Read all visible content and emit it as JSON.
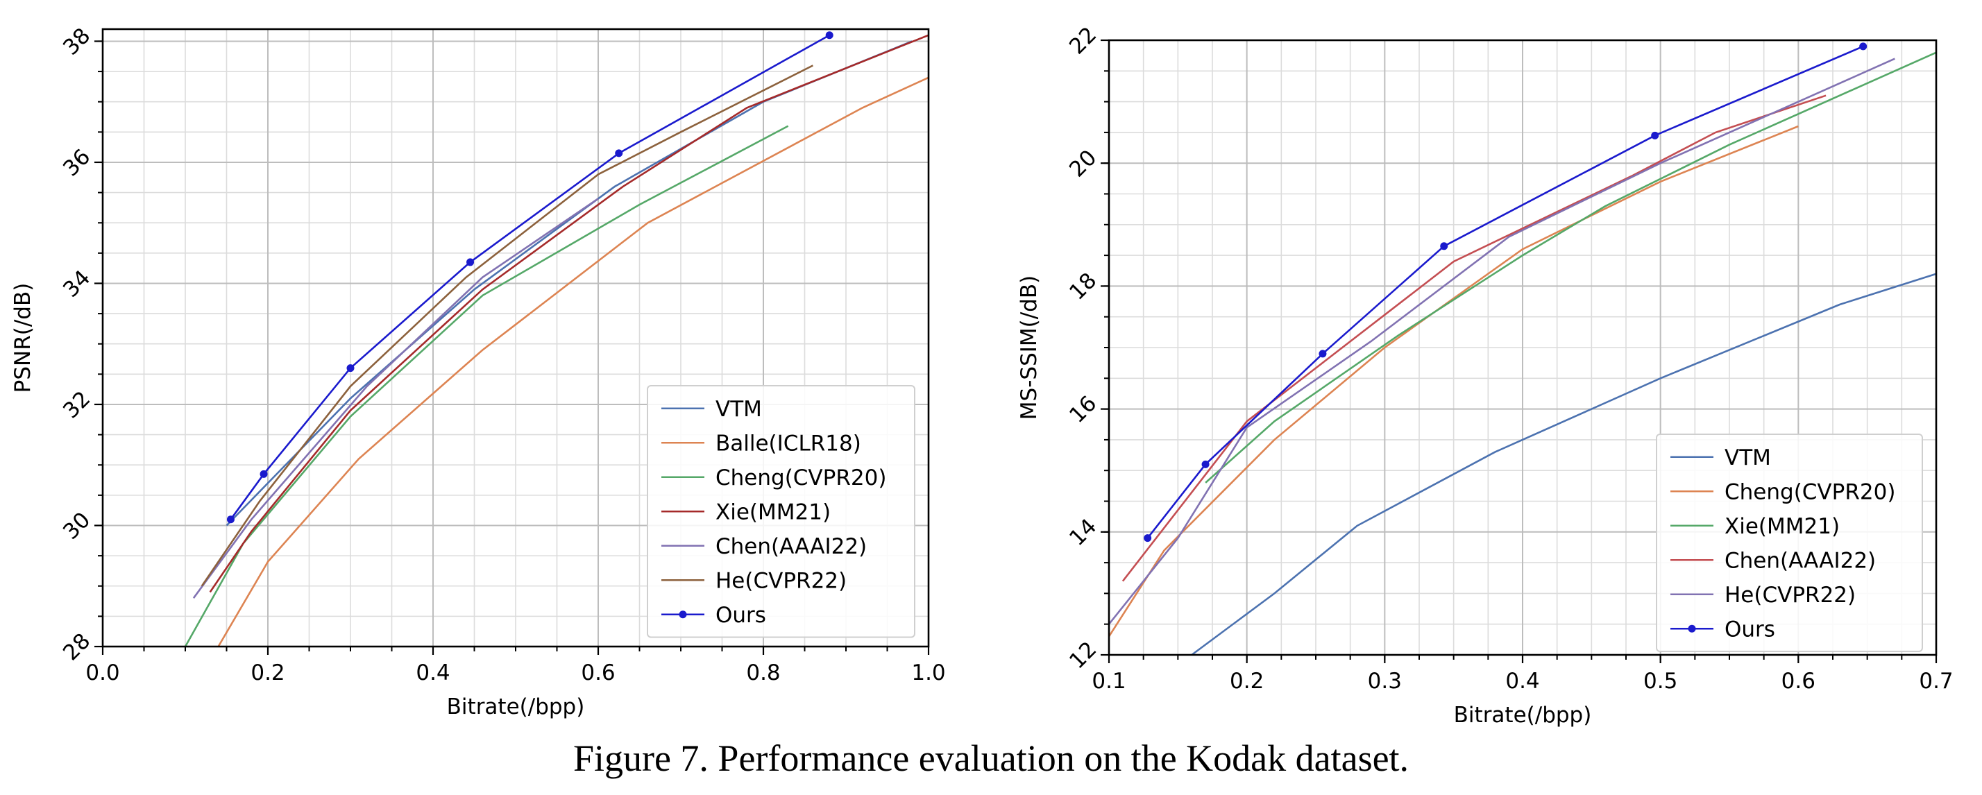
{
  "caption": "Figure 7. Performance evaluation on the Kodak dataset.",
  "chart_data": [
    {
      "type": "line",
      "xlabel": "Bitrate(/bpp)",
      "ylabel": "PSNR(/dB)",
      "xlim": [
        0.0,
        1.0
      ],
      "ylim": [
        28,
        38.2
      ],
      "xticks": [
        0.0,
        0.2,
        0.4,
        0.6,
        0.8,
        1.0
      ],
      "xtick_labels": [
        "0.0",
        "0.2",
        "0.4",
        "0.6",
        "0.8",
        "1.0"
      ],
      "yticks": [
        28,
        30,
        32,
        34,
        36,
        38
      ],
      "ytick_labels": [
        "28",
        "30",
        "32",
        "34",
        "36",
        "38"
      ],
      "grid": true,
      "legend_position": "lower-right",
      "series": [
        {
          "name": "VTM",
          "color": "#4c72b0",
          "marker": false,
          "x": [
            0.15,
            0.2,
            0.3,
            0.45,
            0.62,
            0.8,
            0.98
          ],
          "y": [
            30.0,
            30.7,
            32.1,
            33.9,
            35.6,
            37.0,
            38.0
          ]
        },
        {
          "name": "Balle(ICLR18)",
          "color": "#dd8452",
          "marker": false,
          "x": [
            0.14,
            0.2,
            0.31,
            0.46,
            0.66,
            0.92,
            1.0
          ],
          "y": [
            28.0,
            29.4,
            31.1,
            32.9,
            35.0,
            36.9,
            37.4
          ]
        },
        {
          "name": "Cheng(CVPR20)",
          "color": "#55a868",
          "marker": false,
          "x": [
            0.1,
            0.17,
            0.3,
            0.46,
            0.65,
            0.83
          ],
          "y": [
            28.0,
            29.7,
            31.8,
            33.8,
            35.3,
            36.6
          ]
        },
        {
          "name": "Xie(MM21)",
          "color": "#a52a2a",
          "marker": false,
          "x": [
            0.13,
            0.18,
            0.3,
            0.46,
            0.63,
            0.78,
            1.0
          ],
          "y": [
            28.9,
            29.9,
            31.9,
            33.9,
            35.6,
            36.9,
            38.1
          ]
        },
        {
          "name": "Chen(AAAI22)",
          "color": "#8172b2",
          "marker": false,
          "x": [
            0.11,
            0.18,
            0.32,
            0.46,
            0.6
          ],
          "y": [
            28.8,
            30.1,
            32.3,
            34.1,
            35.4
          ]
        },
        {
          "name": "He(CVPR22)",
          "color": "#8c613c",
          "marker": false,
          "x": [
            0.12,
            0.19,
            0.3,
            0.44,
            0.6,
            0.7,
            0.86
          ],
          "y": [
            29.0,
            30.4,
            32.3,
            34.1,
            35.8,
            36.5,
            37.6
          ]
        },
        {
          "name": "Ours",
          "color": "#1a1acd",
          "marker": true,
          "x": [
            0.155,
            0.195,
            0.3,
            0.445,
            0.625,
            0.88
          ],
          "y": [
            30.1,
            30.85,
            32.6,
            34.35,
            36.15,
            38.1
          ]
        }
      ]
    },
    {
      "type": "line",
      "xlabel": "Bitrate(/bpp)",
      "ylabel": "MS-SSIM(/dB)",
      "xlim": [
        0.1,
        0.7
      ],
      "ylim": [
        12,
        22
      ],
      "xticks": [
        0.1,
        0.2,
        0.3,
        0.4,
        0.5,
        0.6,
        0.7
      ],
      "xtick_labels": [
        "0.1",
        "0.2",
        "0.3",
        "0.4",
        "0.5",
        "0.6",
        "0.7"
      ],
      "yticks": [
        12,
        14,
        16,
        18,
        20,
        22
      ],
      "ytick_labels": [
        "12",
        "14",
        "16",
        "18",
        "20",
        "22"
      ],
      "grid": true,
      "legend_position": "lower-right",
      "series": [
        {
          "name": "VTM",
          "color": "#4c72b0",
          "marker": false,
          "x": [
            0.16,
            0.22,
            0.28,
            0.38,
            0.5,
            0.63,
            0.7
          ],
          "y": [
            12.0,
            13.0,
            14.1,
            15.3,
            16.5,
            17.7,
            18.2
          ]
        },
        {
          "name": "Cheng(CVPR20)",
          "color": "#dd8452",
          "marker": false,
          "x": [
            0.1,
            0.14,
            0.22,
            0.3,
            0.4,
            0.5,
            0.6
          ],
          "y": [
            12.3,
            13.7,
            15.5,
            17.0,
            18.6,
            19.7,
            20.6
          ]
        },
        {
          "name": "Xie(MM21)",
          "color": "#55a868",
          "marker": false,
          "x": [
            0.17,
            0.22,
            0.31,
            0.4,
            0.46,
            0.55,
            0.7
          ],
          "y": [
            14.8,
            15.8,
            17.2,
            18.5,
            19.3,
            20.3,
            21.8
          ]
        },
        {
          "name": "Chen(AAAI22)",
          "color": "#c44e52",
          "marker": false,
          "x": [
            0.11,
            0.2,
            0.35,
            0.48,
            0.54,
            0.62
          ],
          "y": [
            13.2,
            15.8,
            18.4,
            19.8,
            20.5,
            21.1
          ]
        },
        {
          "name": "He(CVPR22)",
          "color": "#8172b2",
          "marker": false,
          "x": [
            0.1,
            0.15,
            0.2,
            0.29,
            0.39,
            0.5,
            0.67
          ],
          "y": [
            12.5,
            13.9,
            15.7,
            17.1,
            18.8,
            20.0,
            21.7
          ]
        },
        {
          "name": "Ours",
          "color": "#1a1acd",
          "marker": true,
          "x": [
            0.128,
            0.17,
            0.255,
            0.343,
            0.496,
            0.647
          ],
          "y": [
            13.9,
            15.1,
            16.9,
            18.65,
            20.45,
            21.9
          ]
        }
      ]
    }
  ]
}
